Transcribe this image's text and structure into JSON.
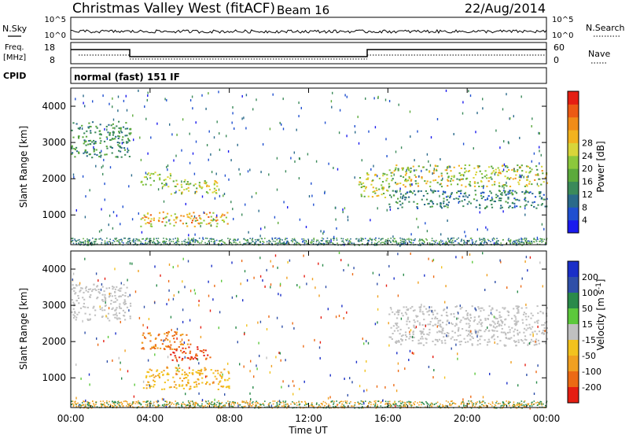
{
  "header": {
    "title": "Christmas Valley West (fitACF)",
    "beam": "Beam 16",
    "date": "22/Aug/2014"
  },
  "info_panels": {
    "nsky_label": "N.Sky",
    "nsky_ticks": [
      "10^5",
      "10^0"
    ],
    "nsearch_label": "N.Search",
    "freq_label_line1": "Freq.",
    "freq_label_line2": "[MHz]",
    "freq_ticks": [
      "18",
      "8"
    ],
    "nave_label": "Nave",
    "nave_ticks": [
      "60",
      "0"
    ],
    "cpid_label": "CPID",
    "cpid_text": "normal (fast) 151 IF"
  },
  "chart_data": [
    {
      "type": "heatmap",
      "name": "power",
      "ylabel": "Slant Range [km]",
      "xlabel": "",
      "xlim": [
        "00:00",
        "24:00"
      ],
      "ylim": [
        180,
        4500
      ],
      "x_ticks": [
        "00:00",
        "04:00",
        "08:00",
        "12:00",
        "16:00",
        "20:00",
        "00:00"
      ],
      "y_ticks": [
        1000,
        2000,
        3000,
        4000
      ],
      "colorbar": {
        "label": "Power [dB]",
        "tick_labels": [
          "4",
          "8",
          "12",
          "16",
          "20",
          "24",
          "28"
        ],
        "range": [
          0,
          32
        ],
        "colors": [
          "#1a1aee",
          "#1f4fd0",
          "#2a6a8a",
          "#3b8a5a",
          "#5caa3c",
          "#8cc83c",
          "#d8d53a",
          "#f2b21e",
          "#f08c18",
          "#ec5a14",
          "#e51e12"
        ]
      },
      "features": [
        {
          "region": "00:00–03:00 UT",
          "range_km": [
            2600,
            3600
          ],
          "power_db": [
            6,
            14
          ]
        },
        {
          "region": "03:30–05:00 UT",
          "range_km": [
            1800,
            2200
          ],
          "power_db": [
            12,
            20
          ]
        },
        {
          "region": "05:00–07:30 UT",
          "range_km": [
            1600,
            2000
          ],
          "power_db": [
            12,
            24
          ]
        },
        {
          "region": "03:30–08:00 UT",
          "range_km": [
            700,
            1100
          ],
          "power_db": [
            14,
            30
          ]
        },
        {
          "region": "14:30–16:00 UT",
          "range_km": [
            1500,
            2200
          ],
          "power_db": [
            12,
            24
          ]
        },
        {
          "region": "16:00–24:00 UT",
          "range_km": [
            1800,
            2400
          ],
          "power_db": [
            10,
            26
          ]
        },
        {
          "region": "16:00–24:00 UT",
          "range_km": [
            1200,
            1700
          ],
          "power_db": [
            4,
            12
          ]
        }
      ]
    },
    {
      "type": "heatmap",
      "name": "velocity",
      "ylabel": "Slant Range [km]",
      "xlabel": "Time UT",
      "xlim": [
        "00:00",
        "24:00"
      ],
      "ylim": [
        180,
        4500
      ],
      "x_ticks": [
        "00:00",
        "04:00",
        "08:00",
        "12:00",
        "16:00",
        "20:00",
        "00:00"
      ],
      "y_ticks": [
        1000,
        2000,
        3000,
        4000
      ],
      "colorbar": {
        "label": "Velocity [m s^-1]",
        "tick_labels": [
          "200",
          "100",
          "50",
          "15",
          "-15",
          "-50",
          "-100",
          "-200"
        ],
        "colors": [
          "#1a2fc8",
          "#2f4fa8",
          "#2a8a4a",
          "#5cc83c",
          "#c0c0c0",
          "#f2c21e",
          "#f0a020",
          "#ec6a14",
          "#e51e12"
        ]
      },
      "features": [
        {
          "region": "00:00–03:00 UT",
          "range_km": [
            2600,
            3600
          ],
          "velocity_ms": [
            -15,
            15
          ],
          "color_note": "ground scatter grey"
        },
        {
          "region": "03:30–06:00 UT",
          "range_km": [
            1800,
            2300
          ],
          "velocity_ms": [
            -100,
            -50
          ]
        },
        {
          "region": "05:00–07:00 UT",
          "range_km": [
            1500,
            1900
          ],
          "velocity_ms": [
            -200,
            -100
          ]
        },
        {
          "region": "03:30–08:00 UT",
          "range_km": [
            700,
            1300
          ],
          "velocity_ms": [
            -50,
            -15
          ]
        },
        {
          "region": "16:00–24:00 UT",
          "range_km": [
            1900,
            3000
          ],
          "velocity_ms": [
            -15,
            15
          ],
          "color_note": "ground scatter grey"
        }
      ]
    }
  ]
}
